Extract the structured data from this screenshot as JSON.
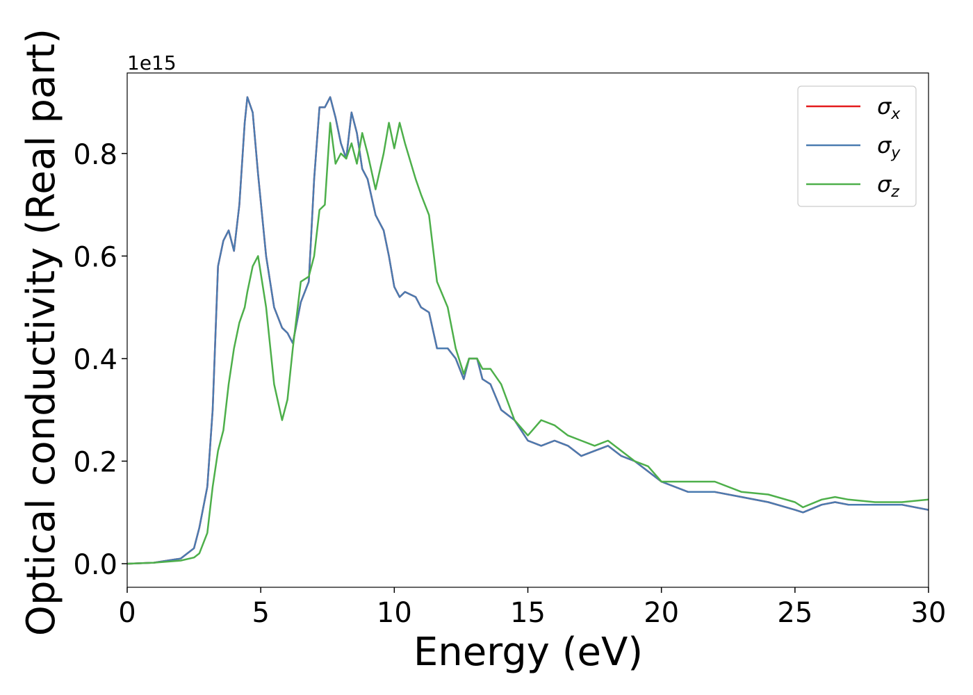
{
  "chart_data": {
    "type": "line",
    "xlabel": "Energy (eV)",
    "ylabel": "Optical conductivity (Real part)",
    "y_offset_label": "1e15",
    "x": [
      0,
      1,
      2,
      2.5,
      2.7,
      3.0,
      3.2,
      3.4,
      3.6,
      3.8,
      4.0,
      4.2,
      4.4,
      4.5,
      4.7,
      4.9,
      5.2,
      5.5,
      5.8,
      6.0,
      6.2,
      6.5,
      6.8,
      7.0,
      7.2,
      7.4,
      7.6,
      7.8,
      8.0,
      8.2,
      8.4,
      8.6,
      8.8,
      9.0,
      9.3,
      9.6,
      9.8,
      10.0,
      10.2,
      10.4,
      10.8,
      11.0,
      11.3,
      11.6,
      12.0,
      12.3,
      12.6,
      12.8,
      13.1,
      13.3,
      13.6,
      14.0,
      14.5,
      15.0,
      15.5,
      16.0,
      16.5,
      17.0,
      17.5,
      18.0,
      18.5,
      19.0,
      19.5,
      20.0,
      21,
      22,
      23,
      24,
      25,
      25.3,
      26,
      26.5,
      27,
      28,
      29,
      30
    ],
    "series": [
      {
        "name": "σx",
        "color": "#e41a1c",
        "values": [
          0,
          0.002,
          0.01,
          0.03,
          0.07,
          0.15,
          0.3,
          0.58,
          0.63,
          0.65,
          0.61,
          0.7,
          0.86,
          0.91,
          0.88,
          0.76,
          0.6,
          0.5,
          0.46,
          0.45,
          0.43,
          0.51,
          0.55,
          0.75,
          0.89,
          0.89,
          0.91,
          0.87,
          0.82,
          0.79,
          0.88,
          0.84,
          0.77,
          0.75,
          0.68,
          0.65,
          0.6,
          0.54,
          0.52,
          0.53,
          0.52,
          0.5,
          0.49,
          0.42,
          0.42,
          0.4,
          0.36,
          0.4,
          0.4,
          0.36,
          0.35,
          0.3,
          0.28,
          0.24,
          0.23,
          0.24,
          0.23,
          0.21,
          0.22,
          0.23,
          0.21,
          0.2,
          0.18,
          0.16,
          0.14,
          0.14,
          0.13,
          0.12,
          0.105,
          0.1,
          0.115,
          0.12,
          0.115,
          0.115,
          0.115,
          0.105
        ]
      },
      {
        "name": "σy",
        "color": "#4a7bb0",
        "values": [
          0,
          0.002,
          0.01,
          0.03,
          0.07,
          0.15,
          0.3,
          0.58,
          0.63,
          0.65,
          0.61,
          0.7,
          0.86,
          0.91,
          0.88,
          0.76,
          0.6,
          0.5,
          0.46,
          0.45,
          0.43,
          0.51,
          0.55,
          0.75,
          0.89,
          0.89,
          0.91,
          0.87,
          0.82,
          0.79,
          0.88,
          0.84,
          0.77,
          0.75,
          0.68,
          0.65,
          0.6,
          0.54,
          0.52,
          0.53,
          0.52,
          0.5,
          0.49,
          0.42,
          0.42,
          0.4,
          0.36,
          0.4,
          0.4,
          0.36,
          0.35,
          0.3,
          0.28,
          0.24,
          0.23,
          0.24,
          0.23,
          0.21,
          0.22,
          0.23,
          0.21,
          0.2,
          0.18,
          0.16,
          0.14,
          0.14,
          0.13,
          0.12,
          0.105,
          0.1,
          0.115,
          0.12,
          0.115,
          0.115,
          0.115,
          0.105
        ]
      },
      {
        "name": "σz",
        "color": "#4daf4a",
        "values": [
          0,
          0.002,
          0.006,
          0.012,
          0.02,
          0.06,
          0.15,
          0.22,
          0.26,
          0.35,
          0.42,
          0.47,
          0.5,
          0.53,
          0.58,
          0.6,
          0.5,
          0.35,
          0.28,
          0.32,
          0.42,
          0.55,
          0.56,
          0.6,
          0.69,
          0.7,
          0.86,
          0.78,
          0.8,
          0.79,
          0.82,
          0.78,
          0.84,
          0.8,
          0.73,
          0.8,
          0.86,
          0.81,
          0.86,
          0.82,
          0.75,
          0.72,
          0.68,
          0.55,
          0.5,
          0.42,
          0.37,
          0.4,
          0.4,
          0.38,
          0.38,
          0.35,
          0.28,
          0.25,
          0.28,
          0.27,
          0.25,
          0.24,
          0.23,
          0.24,
          0.22,
          0.2,
          0.19,
          0.16,
          0.16,
          0.16,
          0.14,
          0.135,
          0.12,
          0.11,
          0.125,
          0.13,
          0.125,
          0.12,
          0.12,
          0.125
        ]
      }
    ],
    "xlim": [
      0,
      30
    ],
    "xticks": [
      0,
      5,
      10,
      15,
      20,
      25,
      30
    ],
    "ylim": [
      -0.046,
      0.957
    ],
    "yticks": [
      {
        "value": 0,
        "label": "0.0"
      },
      0.2,
      0.4,
      0.6,
      0.8
    ],
    "legend": "upper right"
  }
}
